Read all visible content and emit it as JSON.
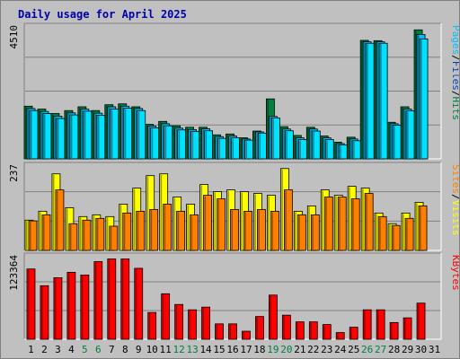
{
  "title": "Daily usage for April 2025",
  "colors": {
    "hits": "#008040",
    "files": "#00c0ff",
    "pages": "#00e0ff",
    "visits": "#ffff00",
    "sites": "#ff8000",
    "kbytes": "#ff0000",
    "weekend_label": "#008040",
    "weekday_label": "#000000",
    "title": "#0000aa"
  },
  "chart_data": [
    {
      "type": "bar",
      "name": "hits-files-pages",
      "ymax_label": "4510",
      "ymax": 4510,
      "right_label": [
        {
          "text": "Pages",
          "color": "#00c0ff"
        },
        {
          "text": "/",
          "color": "#000000"
        },
        {
          "text": "Files",
          "color": "#0040c0"
        },
        {
          "text": "/",
          "color": "#000000"
        },
        {
          "text": "Hits",
          "color": "#008040"
        }
      ],
      "series": [
        {
          "key": "hits",
          "values": [
            1800,
            1700,
            1550,
            1650,
            1780,
            1650,
            1850,
            1880,
            1780,
            1180,
            1280,
            1130,
            1080,
            1080,
            820,
            850,
            720,
            950,
            2050,
            1100,
            800,
            1080,
            780,
            570,
            740,
            4050,
            4040,
            1250,
            1780,
            4410
          ]
        },
        {
          "key": "files",
          "values": [
            1720,
            1620,
            1460,
            1570,
            1700,
            1560,
            1780,
            1800,
            1720,
            1120,
            1200,
            1050,
            1000,
            1030,
            760,
            780,
            680,
            920,
            1450,
            1020,
            720,
            1020,
            720,
            520,
            680,
            4000,
            4000,
            1200,
            1700,
            4250
          ]
        },
        {
          "key": "pages",
          "values": [
            1650,
            1550,
            1380,
            1500,
            1630,
            1490,
            1700,
            1730,
            1650,
            1060,
            1130,
            990,
            940,
            960,
            700,
            720,
            640,
            880,
            1400,
            960,
            660,
            950,
            660,
            480,
            620,
            3950,
            3950,
            1150,
            1640,
            4100
          ]
        }
      ]
    },
    {
      "type": "bar",
      "name": "visits-sites",
      "ymax_label": "237",
      "ymax": 237,
      "right_label": [
        {
          "text": "Sites",
          "color": "#ff8000"
        },
        {
          "text": "/",
          "color": "#000000"
        },
        {
          "text": "Visits",
          "color": "#ffff00"
        }
      ],
      "series": [
        {
          "key": "visits",
          "values": [
            85,
            110,
            215,
            120,
            95,
            100,
            95,
            130,
            175,
            210,
            215,
            150,
            130,
            185,
            165,
            170,
            165,
            160,
            155,
            230,
            110,
            125,
            170,
            155,
            180,
            175,
            105,
            75,
            105,
            135
          ]
        },
        {
          "key": "sites",
          "values": [
            83,
            100,
            170,
            75,
            85,
            90,
            68,
            105,
            110,
            115,
            130,
            110,
            100,
            155,
            145,
            115,
            110,
            115,
            110,
            170,
            100,
            100,
            150,
            150,
            145,
            160,
            95,
            70,
            90,
            125
          ]
        }
      ]
    },
    {
      "type": "bar",
      "name": "kbytes",
      "ymax_label": "123364",
      "ymax": 123364,
      "right_label": [
        {
          "text": "KBytes",
          "color": "#ff0000"
        }
      ],
      "series": [
        {
          "key": "kbytes",
          "values": [
            105000,
            80000,
            92000,
            100000,
            96000,
            116000,
            120000,
            120000,
            106000,
            40000,
            68000,
            52000,
            44000,
            48000,
            23000,
            23000,
            12000,
            34000,
            66000,
            36000,
            26000,
            26000,
            22000,
            10000,
            18000,
            44000,
            44000,
            25000,
            32000,
            54000
          ]
        }
      ]
    }
  ],
  "x_labels": [
    {
      "text": "1",
      "weekend": false
    },
    {
      "text": "2",
      "weekend": false
    },
    {
      "text": "3",
      "weekend": false
    },
    {
      "text": "4",
      "weekend": false
    },
    {
      "text": "5",
      "weekend": true
    },
    {
      "text": "6",
      "weekend": true
    },
    {
      "text": "7",
      "weekend": false
    },
    {
      "text": "8",
      "weekend": false
    },
    {
      "text": "9",
      "weekend": false
    },
    {
      "text": "10",
      "weekend": false
    },
    {
      "text": "11",
      "weekend": false
    },
    {
      "text": "12",
      "weekend": true
    },
    {
      "text": "13",
      "weekend": true
    },
    {
      "text": "14",
      "weekend": false
    },
    {
      "text": "15",
      "weekend": false
    },
    {
      "text": "16",
      "weekend": false
    },
    {
      "text": "17",
      "weekend": false
    },
    {
      "text": "18",
      "weekend": false
    },
    {
      "text": "19",
      "weekend": true
    },
    {
      "text": "20",
      "weekend": true
    },
    {
      "text": "21",
      "weekend": false
    },
    {
      "text": "22",
      "weekend": false
    },
    {
      "text": "23",
      "weekend": false
    },
    {
      "text": "24",
      "weekend": false
    },
    {
      "text": "25",
      "weekend": false
    },
    {
      "text": "26",
      "weekend": true
    },
    {
      "text": "27",
      "weekend": true
    },
    {
      "text": "28",
      "weekend": false
    },
    {
      "text": "29",
      "weekend": false
    },
    {
      "text": "30",
      "weekend": false
    },
    {
      "text": "31",
      "weekend": false
    }
  ]
}
